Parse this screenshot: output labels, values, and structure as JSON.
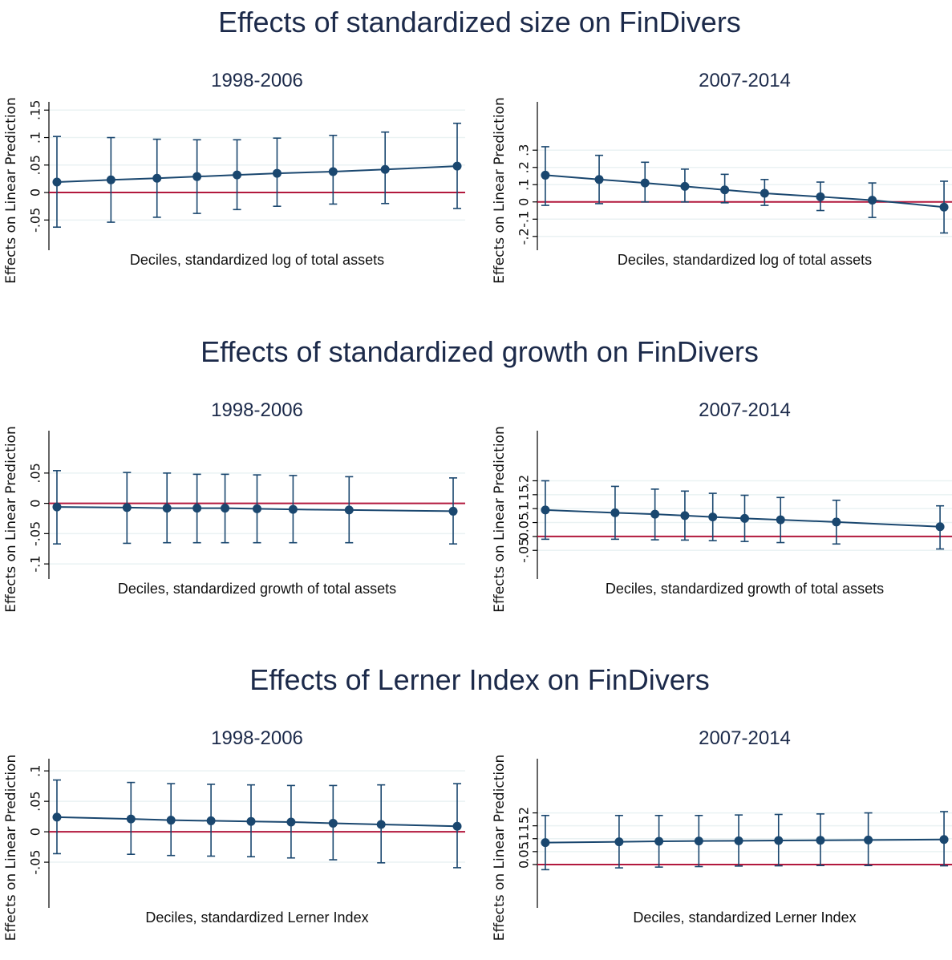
{
  "rows": [
    {
      "title": "Effects of standardized size on FinDivers"
    },
    {
      "title": "Effects of standardized growth on FinDivers"
    },
    {
      "title": "Effects of Lerner Index on FinDivers"
    }
  ],
  "colors": {
    "line": "#1a476f",
    "reference": "#b2183d",
    "grid": "#eaf2f3",
    "text": "#1c2a4a"
  },
  "chart_data": [
    {
      "type": "line",
      "row": 0,
      "col": 0,
      "title": "1998-2006",
      "xlabel": "Deciles, standardized log of total assets",
      "ylabel": "Effects on Linear Prediction",
      "yticks": [
        -0.05,
        0,
        0.05,
        0.1,
        0.15
      ],
      "ytick_labels": [
        "-.05",
        "0",
        ".05",
        ".1",
        ".15"
      ],
      "ylim": [
        -0.105,
        0.165
      ],
      "xlim": [
        -0.2,
        10.2
      ],
      "reference_line": 0,
      "x": [
        0,
        1.35,
        2.5,
        3.5,
        4.5,
        5.5,
        6.9,
        8.2,
        10
      ],
      "y": [
        0.019,
        0.023,
        0.026,
        0.029,
        0.032,
        0.035,
        0.038,
        0.042,
        0.048
      ],
      "ci_low": [
        -0.063,
        -0.054,
        -0.045,
        -0.038,
        -0.031,
        -0.025,
        -0.021,
        -0.02,
        -0.029
      ],
      "ci_high": [
        0.102,
        0.1,
        0.097,
        0.096,
        0.096,
        0.099,
        0.104,
        0.11,
        0.126
      ]
    },
    {
      "type": "line",
      "row": 0,
      "col": 1,
      "title": "2007-2014",
      "xlabel": "Deciles, standardized log of total assets",
      "ylabel": "Effects on Linear Prediction",
      "yticks": [
        -0.2,
        -0.1,
        0,
        0.1,
        0.2,
        0.3
      ],
      "ytick_labels": [
        "-.2",
        "-.1",
        "0",
        ".1",
        ".2",
        ".3"
      ],
      "ylim": [
        -0.28,
        0.58
      ],
      "xlim": [
        -0.2,
        10.2
      ],
      "reference_line": 0,
      "x": [
        0,
        1.35,
        2.5,
        3.5,
        4.5,
        5.5,
        6.9,
        8.2,
        10
      ],
      "y": [
        0.155,
        0.13,
        0.11,
        0.09,
        0.07,
        0.05,
        0.03,
        0.01,
        -0.03
      ],
      "ci_low": [
        -0.02,
        -0.01,
        0,
        0,
        -0.005,
        -0.02,
        -0.05,
        -0.09,
        -0.18
      ],
      "ci_high": [
        0.32,
        0.27,
        0.23,
        0.19,
        0.16,
        0.13,
        0.115,
        0.11,
        0.12
      ]
    },
    {
      "type": "line",
      "row": 1,
      "col": 0,
      "title": "1998-2006",
      "xlabel": "Deciles, standardized growth of total assets",
      "ylabel": "Effects on Linear Prediction",
      "yticks": [
        -0.1,
        -0.05,
        0,
        0.05
      ],
      "ytick_labels": [
        "-.1",
        "-.05",
        "0",
        ".05"
      ],
      "ylim": [
        -0.125,
        0.12
      ],
      "xlim": [
        -0.2,
        10.2
      ],
      "reference_line": 0,
      "x": [
        0,
        1.75,
        2.75,
        3.5,
        4.2,
        5,
        5.9,
        7.3,
        9.9
      ],
      "y": [
        -0.006,
        -0.007,
        -0.008,
        -0.008,
        -0.008,
        -0.009,
        -0.01,
        -0.011,
        -0.013
      ],
      "ci_low": [
        -0.067,
        -0.066,
        -0.065,
        -0.065,
        -0.065,
        -0.065,
        -0.065,
        -0.065,
        -0.067
      ],
      "ci_high": [
        0.054,
        0.051,
        0.05,
        0.048,
        0.048,
        0.047,
        0.046,
        0.044,
        0.042
      ]
    },
    {
      "type": "line",
      "row": 1,
      "col": 1,
      "title": "2007-2014",
      "xlabel": "Deciles, standardized growth of total assets",
      "ylabel": "Effects on Linear Prediction",
      "yticks": [
        -0.05,
        0,
        0.05,
        0.1,
        0.15,
        0.2
      ],
      "ytick_labels": [
        "-.05",
        "0",
        ".05",
        ".1",
        ".15",
        ".2"
      ],
      "ylim": [
        -0.153,
        0.38
      ],
      "xlim": [
        -0.2,
        10.2
      ],
      "reference_line": 0,
      "x": [
        0,
        1.75,
        2.75,
        3.5,
        4.2,
        5,
        5.9,
        7.3,
        9.9
      ],
      "y": [
        0.095,
        0.085,
        0.08,
        0.075,
        0.07,
        0.065,
        0.06,
        0.052,
        0.035
      ],
      "ci_low": [
        -0.01,
        -0.01,
        -0.012,
        -0.013,
        -0.015,
        -0.018,
        -0.022,
        -0.027,
        -0.045
      ],
      "ci_high": [
        0.2,
        0.18,
        0.17,
        0.163,
        0.155,
        0.148,
        0.14,
        0.13,
        0.11
      ]
    },
    {
      "type": "line",
      "row": 2,
      "col": 0,
      "title": "1998-2006",
      "xlabel": "Deciles, standardized Lerner Index",
      "ylabel": "Effects on Linear Prediction",
      "yticks": [
        -0.05,
        0,
        0.05,
        0.1
      ],
      "ytick_labels": [
        "-.05",
        "0",
        ".05",
        ".1"
      ],
      "ylim": [
        -0.125,
        0.12
      ],
      "xlim": [
        -0.2,
        10.2
      ],
      "reference_line": 0,
      "x": [
        0,
        1.85,
        2.85,
        3.85,
        4.85,
        5.85,
        6.9,
        8.1,
        10
      ],
      "y": [
        0.024,
        0.021,
        0.019,
        0.018,
        0.017,
        0.016,
        0.014,
        0.012,
        0.009
      ],
      "ci_low": [
        -0.036,
        -0.037,
        -0.039,
        -0.04,
        -0.041,
        -0.043,
        -0.046,
        -0.051,
        -0.059
      ],
      "ci_high": [
        0.085,
        0.081,
        0.079,
        0.078,
        0.077,
        0.076,
        0.076,
        0.077,
        0.079
      ]
    },
    {
      "type": "line",
      "row": 2,
      "col": 1,
      "title": "2007-2014",
      "xlabel": "Deciles, standardized Lerner Index",
      "ylabel": "Effects on Linear Prediction",
      "yticks": [
        0,
        0.05,
        0.1,
        0.15,
        0.2
      ],
      "ytick_labels": [
        "0",
        ".05",
        ".1",
        ".15",
        ".2"
      ],
      "ylim": [
        -0.168,
        0.41
      ],
      "xlim": [
        -0.2,
        10.2
      ],
      "reference_line": 0,
      "x": [
        0,
        1.85,
        2.85,
        3.85,
        4.85,
        5.85,
        6.9,
        8.1,
        10
      ],
      "y": [
        0.085,
        0.088,
        0.09,
        0.091,
        0.092,
        0.093,
        0.094,
        0.095,
        0.097
      ],
      "ci_low": [
        -0.02,
        -0.013,
        -0.01,
        -0.008,
        -0.006,
        -0.005,
        -0.004,
        -0.004,
        -0.005
      ],
      "ci_high": [
        0.19,
        0.19,
        0.19,
        0.19,
        0.192,
        0.194,
        0.196,
        0.2,
        0.205
      ]
    }
  ]
}
